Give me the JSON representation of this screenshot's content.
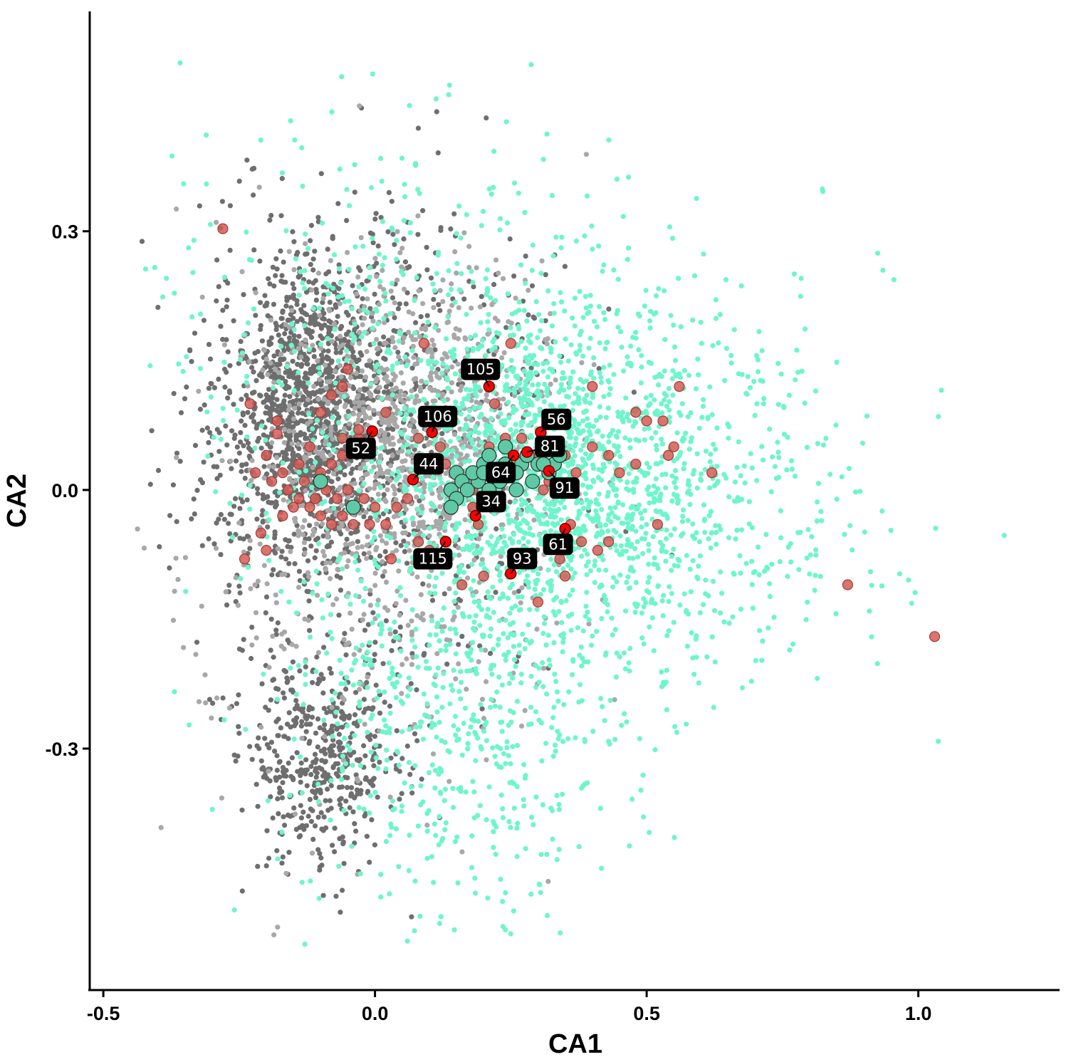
{
  "chart_data": {
    "type": "scatter",
    "xlabel": "CA1",
    "ylabel": "CA2",
    "xlim": [
      -0.525,
      1.26
    ],
    "ylim": [
      -0.58,
      0.555
    ],
    "x_ticks": [
      -0.5,
      0.0,
      0.5,
      1.0
    ],
    "x_tick_labels": [
      "-0.5",
      "0.0",
      "0.5",
      "1.0"
    ],
    "y_ticks": [
      -0.3,
      0.0,
      0.3
    ],
    "y_tick_labels": [
      "-0.3",
      "0.0",
      "0.3"
    ],
    "grid": false,
    "legend": "none",
    "colors": {
      "dark_gray": "#6e6e6e",
      "light_gray": "#a8a8a8",
      "aquamarine": "#6ff5cc",
      "red_point": "#d45c55",
      "teal_point": "#5ec9a4",
      "highlight": "#ff0000",
      "label_bg": "#000000",
      "label_text": "#ffffff"
    },
    "background_clouds": [
      {
        "name": "dark-gray",
        "color": "#6e6e6e",
        "point_count": 2300
      },
      {
        "name": "light-gray",
        "color": "#a8a8a8",
        "point_count": 1300
      },
      {
        "name": "aquamarine",
        "color": "#6ff5cc",
        "point_count": 2800
      }
    ],
    "series": [
      {
        "name": "red-samples",
        "color": "#d45c55",
        "points": [
          [
            -0.28,
            0.303
          ],
          [
            -0.23,
            0.1
          ],
          [
            -0.18,
            0.08
          ],
          [
            -0.18,
            0.065
          ],
          [
            -0.2,
            0.04
          ],
          [
            -0.14,
            0.03
          ],
          [
            -0.17,
            0.02
          ],
          [
            -0.22,
            0.02
          ],
          [
            -0.19,
            0.01
          ],
          [
            -0.16,
            0.0
          ],
          [
            -0.13,
            0.01
          ],
          [
            -0.1,
            0.02
          ],
          [
            -0.08,
            0.03
          ],
          [
            -0.06,
            0.04
          ],
          [
            -0.04,
            0.05
          ],
          [
            -0.06,
            0.06
          ],
          [
            -0.03,
            0.06
          ],
          [
            -0.03,
            0.07
          ],
          [
            -0.1,
            0.09
          ],
          [
            -0.08,
            0.11
          ],
          [
            -0.06,
            0.12
          ],
          [
            -0.05,
            0.14
          ],
          [
            -0.12,
            0.05
          ],
          [
            -0.14,
            -0.01
          ],
          [
            -0.12,
            -0.02
          ],
          [
            -0.1,
            -0.03
          ],
          [
            -0.08,
            -0.04
          ],
          [
            -0.06,
            -0.03
          ],
          [
            -0.04,
            -0.02
          ],
          [
            -0.02,
            -0.01
          ],
          [
            0.0,
            -0.02
          ],
          [
            0.02,
            -0.04
          ],
          [
            0.04,
            -0.02
          ],
          [
            0.06,
            -0.01
          ],
          [
            -0.21,
            -0.05
          ],
          [
            -0.2,
            -0.07
          ],
          [
            -0.24,
            -0.08
          ],
          [
            -0.17,
            -0.03
          ],
          [
            -0.15,
            -0.02
          ],
          [
            -0.11,
            -0.01
          ],
          [
            -0.09,
            0.0
          ],
          [
            -0.07,
            -0.01
          ],
          [
            -0.05,
            0.0
          ],
          [
            -0.04,
            -0.04
          ],
          [
            0.02,
            0.09
          ],
          [
            0.08,
            0.06
          ],
          [
            0.09,
            0.17
          ],
          [
            0.12,
            0.05
          ],
          [
            0.13,
            0.03
          ],
          [
            0.15,
            0.02
          ],
          [
            0.16,
            0.01
          ],
          [
            0.14,
            0.0
          ],
          [
            0.18,
            0.0
          ],
          [
            0.18,
            -0.02
          ],
          [
            0.19,
            -0.04
          ],
          [
            0.21,
            0.05
          ],
          [
            0.22,
            0.1
          ],
          [
            0.25,
            0.17
          ],
          [
            0.24,
            0.06
          ],
          [
            0.27,
            0.06
          ],
          [
            0.29,
            0.04
          ],
          [
            0.3,
            0.03
          ],
          [
            0.31,
            0.0
          ],
          [
            0.32,
            0.01
          ],
          [
            0.34,
            0.05
          ],
          [
            0.35,
            0.04
          ],
          [
            0.37,
            0.02
          ],
          [
            0.36,
            -0.04
          ],
          [
            0.38,
            -0.06
          ],
          [
            0.41,
            -0.07
          ],
          [
            0.43,
            -0.06
          ],
          [
            0.45,
            0.02
          ],
          [
            0.48,
            0.03
          ],
          [
            0.5,
            0.08
          ],
          [
            0.53,
            0.08
          ],
          [
            0.54,
            0.04
          ],
          [
            0.55,
            0.05
          ],
          [
            0.56,
            0.12
          ],
          [
            0.62,
            0.02
          ],
          [
            0.52,
            -0.04
          ],
          [
            0.4,
            0.05
          ],
          [
            0.43,
            0.04
          ],
          [
            0.48,
            0.09
          ],
          [
            0.4,
            0.12
          ],
          [
            0.3,
            -0.13
          ],
          [
            0.35,
            -0.1
          ],
          [
            0.34,
            -0.08
          ],
          [
            0.16,
            -0.11
          ],
          [
            0.2,
            -0.1
          ],
          [
            0.1,
            -0.07
          ],
          [
            0.12,
            -0.08
          ],
          [
            0.08,
            -0.06
          ],
          [
            0.03,
            -0.08
          ],
          [
            -0.01,
            -0.04
          ],
          [
            0.87,
            -0.11
          ],
          [
            1.03,
            -0.17
          ]
        ]
      },
      {
        "name": "teal-samples",
        "color": "#5ec9a4",
        "points": [
          [
            -0.1,
            0.01
          ],
          [
            -0.04,
            -0.02
          ],
          [
            0.14,
            0.0
          ],
          [
            0.15,
            0.02
          ],
          [
            0.16,
            0.01
          ],
          [
            0.17,
            0.0
          ],
          [
            0.15,
            -0.01
          ],
          [
            0.14,
            -0.02
          ],
          [
            0.2,
            0.03
          ],
          [
            0.21,
            0.04
          ],
          [
            0.22,
            0.02
          ],
          [
            0.23,
            0.01
          ],
          [
            0.24,
            0.03
          ],
          [
            0.25,
            0.02
          ],
          [
            0.26,
            0.0
          ],
          [
            0.27,
            0.03
          ],
          [
            0.3,
            0.03
          ],
          [
            0.31,
            0.05
          ],
          [
            0.32,
            0.02
          ],
          [
            0.33,
            0.03
          ],
          [
            0.34,
            0.04
          ],
          [
            0.19,
            0.01
          ],
          [
            0.18,
            0.02
          ],
          [
            0.21,
            0.0
          ],
          [
            0.24,
            0.05
          ],
          [
            0.28,
            0.04
          ],
          [
            0.2,
            0.02
          ],
          [
            0.26,
            0.02
          ],
          [
            0.29,
            0.01
          ],
          [
            0.31,
            0.03
          ]
        ]
      },
      {
        "name": "highlighted",
        "color": "#ff0000",
        "points": [
          {
            "id": "105",
            "x": 0.21,
            "y": 0.12,
            "label": "105"
          },
          {
            "id": "106",
            "x": 0.105,
            "y": 0.067,
            "label": "106"
          },
          {
            "id": "52",
            "x": -0.005,
            "y": 0.068,
            "label": "52"
          },
          {
            "id": "44",
            "x": 0.07,
            "y": 0.012,
            "label": "44"
          },
          {
            "id": "56",
            "x": 0.305,
            "y": 0.067,
            "label": "56"
          },
          {
            "id": "81",
            "x": 0.28,
            "y": 0.044,
            "label": "81"
          },
          {
            "id": "64",
            "x": 0.255,
            "y": 0.04,
            "label": "64"
          },
          {
            "id": "91",
            "x": 0.32,
            "y": 0.022,
            "label": "91"
          },
          {
            "id": "34",
            "x": 0.185,
            "y": -0.03,
            "label": "34"
          },
          {
            "id": "61",
            "x": 0.35,
            "y": -0.045,
            "label": "61"
          },
          {
            "id": "115",
            "x": 0.13,
            "y": -0.06,
            "label": "115"
          },
          {
            "id": "93",
            "x": 0.25,
            "y": -0.097,
            "label": "93"
          }
        ]
      }
    ]
  }
}
